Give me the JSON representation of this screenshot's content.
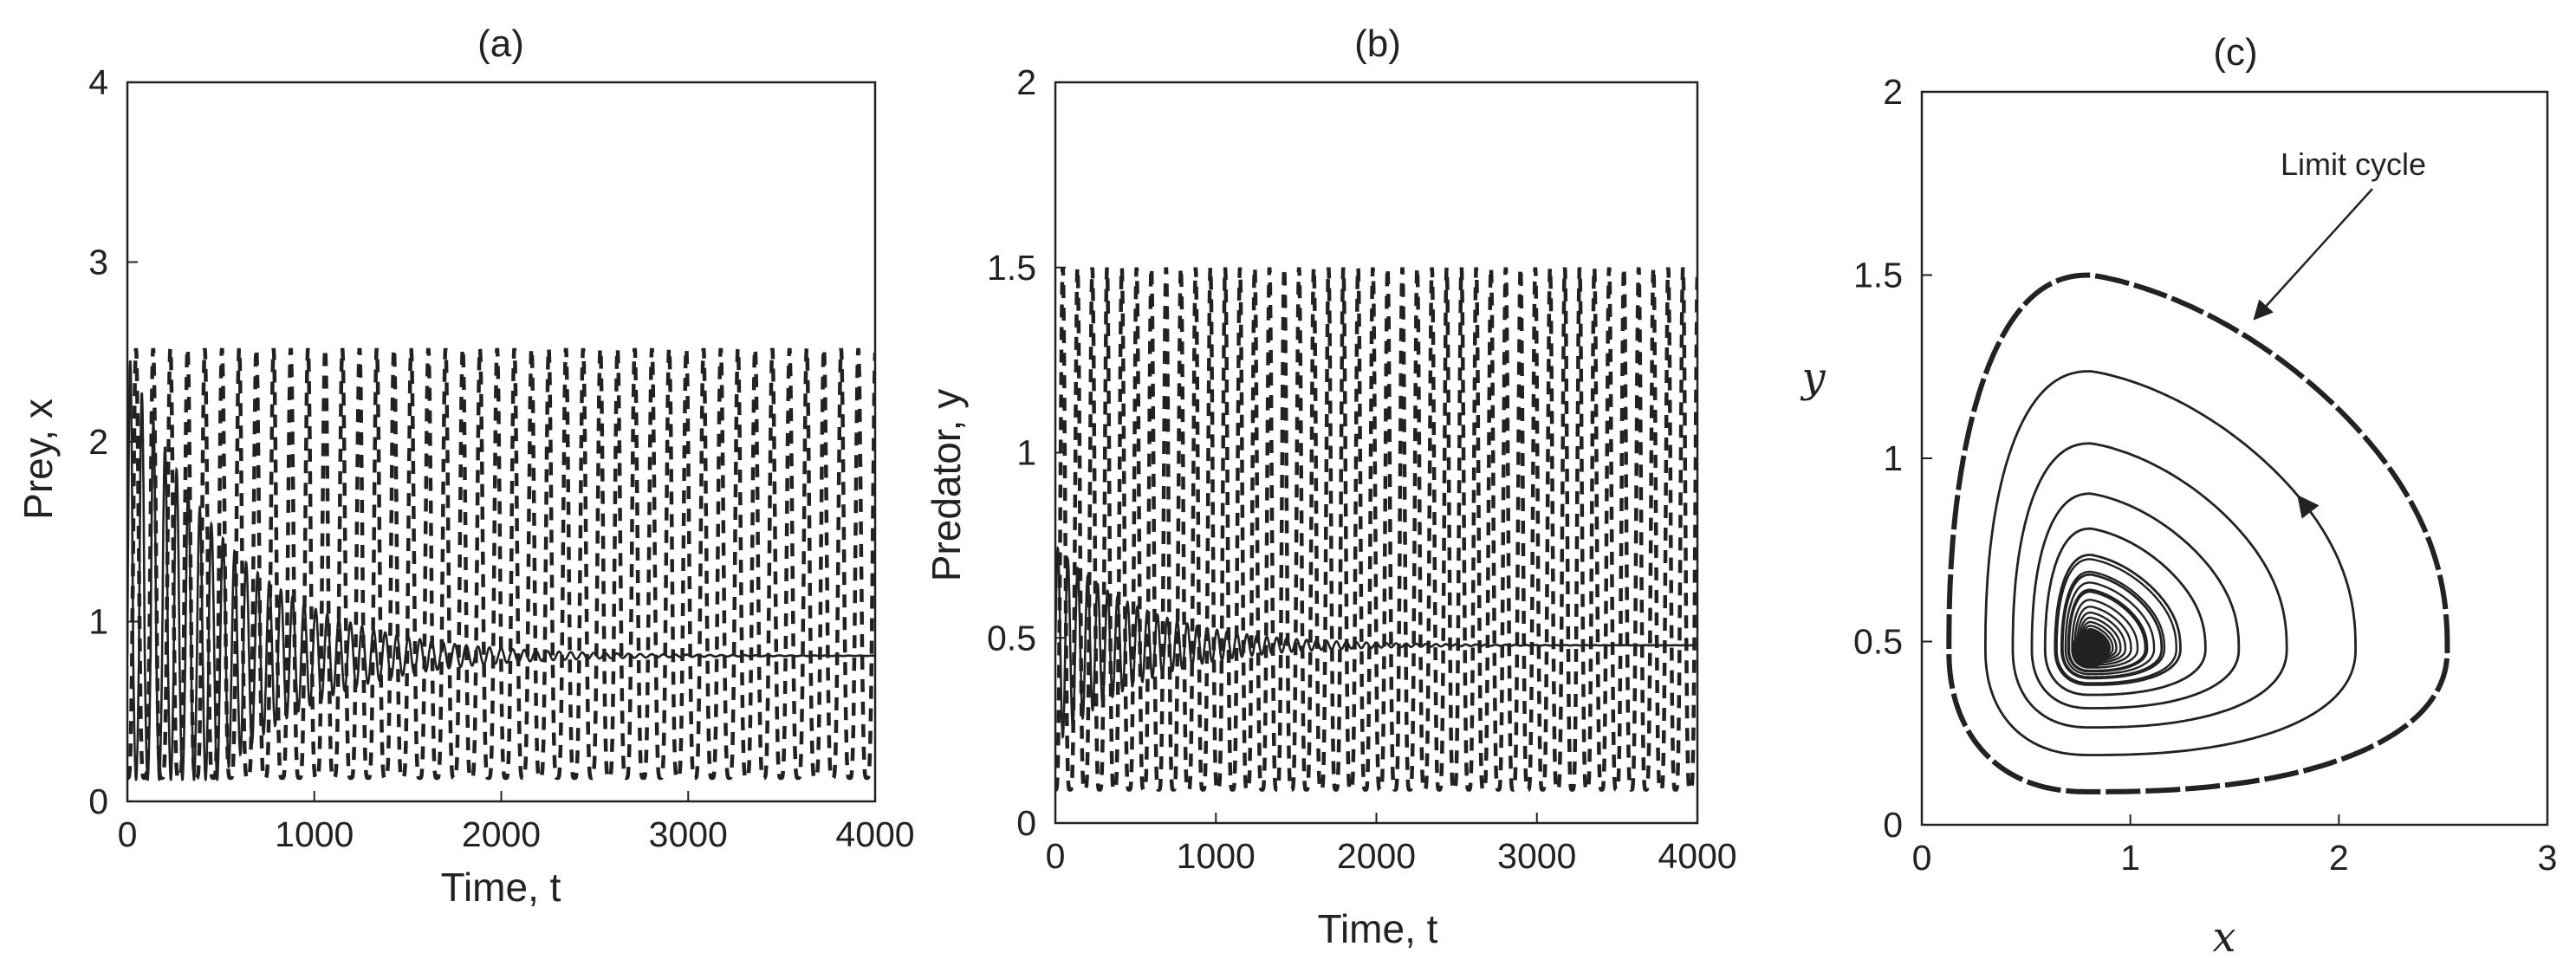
{
  "chart_data": [
    {
      "panel": "a",
      "type": "line",
      "title": "(a)",
      "xlabel": "Time, t",
      "ylabel": "Prey, x",
      "xlim": [
        0,
        4000
      ],
      "ylim": [
        0,
        4
      ],
      "xticks": [
        "0",
        "1000",
        "2000",
        "3000",
        "4000"
      ],
      "yticks": [
        "0",
        "1",
        "2",
        "3",
        "4"
      ],
      "grid": false,
      "series": [
        {
          "style": "dashed",
          "description_values": {
            "oscillation_max": 2.52,
            "oscillation_min": 0.13,
            "period": 92
          }
        },
        {
          "style": "solid",
          "description_values": {
            "initial_max": 2.5,
            "equilibrium": 0.81,
            "decay_end": 2800
          }
        }
      ]
    },
    {
      "panel": "b",
      "type": "line",
      "title": "(b)",
      "xlabel": "Time, t",
      "ylabel": "Predator, y",
      "xlim": [
        0,
        4000
      ],
      "ylim": [
        0,
        2
      ],
      "xticks": [
        "0",
        "1000",
        "2000",
        "3000",
        "4000"
      ],
      "yticks": [
        "0",
        "0.5",
        "1",
        "1.5",
        "2"
      ],
      "grid": false,
      "series": [
        {
          "style": "dashed",
          "description_values": {
            "oscillation_max": 1.5,
            "oscillation_min": 0.09,
            "period": 92
          }
        },
        {
          "style": "solid",
          "description_values": {
            "initial_max": 0.75,
            "equilibrium": 0.48,
            "decay_end": 2800
          }
        }
      ]
    },
    {
      "panel": "c",
      "type": "line",
      "title": "(c)",
      "xlabel": "x",
      "ylabel": "y",
      "xlim": [
        0,
        3
      ],
      "ylim": [
        0,
        2
      ],
      "xticks": [
        "0",
        "1",
        "2",
        "3"
      ],
      "yticks": [
        "0",
        "0.5",
        "1",
        "1.5",
        "2"
      ],
      "grid": false,
      "annotation": "Limit cycle",
      "equilibrium": {
        "x": 0.81,
        "y": 0.48
      },
      "limit_cycle": {
        "x_min": 0.13,
        "x_max": 2.52,
        "y_min": 0.09,
        "y_max": 1.5
      },
      "spiral_x_extremes": [
        2.52,
        2.08,
        1.75,
        1.52,
        1.36,
        1.24,
        1.15,
        1.08
      ]
    }
  ]
}
